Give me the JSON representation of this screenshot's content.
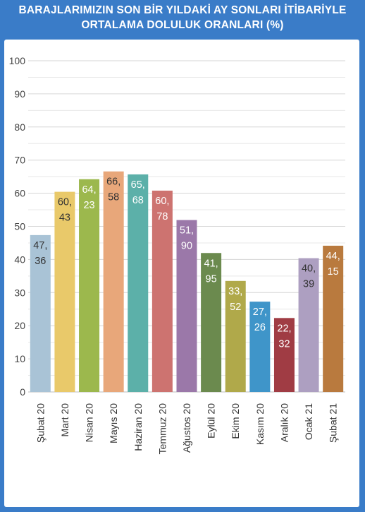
{
  "title_line1": "BARAJLARIMIZIN SON BİR YILDAKİ AY SONLARI İTİBARİYLE",
  "title_line2": "ORTALAMA DOLULUK ORANLARI (%)",
  "chart_data": {
    "type": "bar",
    "title": "BARAJLARIMIZIN SON BİR YILDAKİ AY SONLARI İTİBARİYLE ORTALAMA DOLULUK ORANLARI (%)",
    "xlabel": "",
    "ylabel": "",
    "ylim": [
      0,
      100
    ],
    "yticks": [
      "0",
      "10",
      "20",
      "30",
      "40",
      "50",
      "60",
      "70",
      "80",
      "90",
      "100"
    ],
    "grid": true,
    "legend": "none",
    "categories": [
      "Şubat 20",
      "Mart 20",
      "Nisan 20",
      "Mayıs 20",
      "Haziran 20",
      "Temmuz 20",
      "Ağustos 20",
      "Eylül 20",
      "Ekim 20",
      "Kasım 20",
      "Aralık 20",
      "Ocak 21",
      "Şubat 21"
    ],
    "values": [
      47.36,
      60.43,
      64.23,
      66.58,
      65.68,
      60.78,
      51.9,
      41.95,
      33.52,
      27.26,
      22.32,
      40.39,
      44.15
    ],
    "labels": [
      [
        "47,",
        "36"
      ],
      [
        "60,",
        "43"
      ],
      [
        "64,",
        "23"
      ],
      [
        "66,",
        "58"
      ],
      [
        "65,",
        "68"
      ],
      [
        "60,",
        "78"
      ],
      [
        "51,",
        "90"
      ],
      [
        "41,",
        "95"
      ],
      [
        "33,",
        "52"
      ],
      [
        "27,",
        "26"
      ],
      [
        "22,",
        "32"
      ],
      [
        "40,",
        "39"
      ],
      [
        "44,",
        "15"
      ]
    ],
    "colors": [
      "#a9c3d6",
      "#e9c96a",
      "#9cb84d",
      "#e8a77a",
      "#5cb0a9",
      "#cd7370",
      "#9b78a9",
      "#6b8a4e",
      "#b0a94a",
      "#3f95c9",
      "#a03c44",
      "#ad9fc1",
      "#b97a3e"
    ],
    "label_colors": [
      "#333333",
      "#333333",
      "#ffffff",
      "#333333",
      "#ffffff",
      "#ffffff",
      "#ffffff",
      "#ffffff",
      "#ffffff",
      "#ffffff",
      "#ffffff",
      "#333333",
      "#ffffff"
    ]
  }
}
